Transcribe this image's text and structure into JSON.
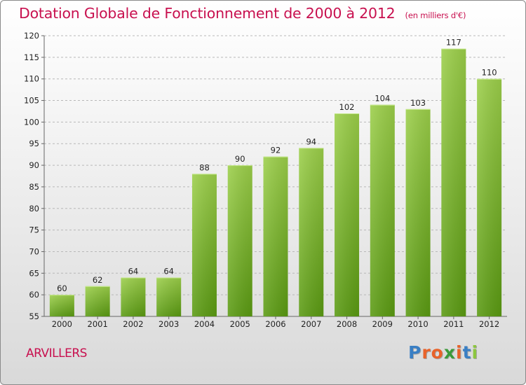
{
  "header": {
    "title": "Dotation Globale de Fonctionnement de 2000 à 2012",
    "subtitle": "(en milliers d'€)"
  },
  "footer": {
    "commune": "ARVILLERS",
    "logo_text": "Proxiti",
    "logo_colors": [
      "#3a7fc4",
      "#e8622a",
      "#e8622a",
      "#3a9a3a",
      "#e8622a",
      "#3a7fc4",
      "#8cc63f"
    ]
  },
  "colors": {
    "accent": "#c8104f",
    "bar_top": "#9ccf4a",
    "bar_bottom": "#5a9a12",
    "grid": "#b8b8b8"
  },
  "chart_data": {
    "type": "bar",
    "title": "Dotation Globale de Fonctionnement de 2000 à 2012",
    "subtitle": "(en milliers d'€)",
    "categories": [
      "2000",
      "2001",
      "2002",
      "2003",
      "2004",
      "2005",
      "2006",
      "2007",
      "2008",
      "2009",
      "2010",
      "2011",
      "2012"
    ],
    "values": [
      60,
      62,
      64,
      64,
      88,
      90,
      92,
      94,
      102,
      104,
      103,
      117,
      110
    ],
    "ylim": [
      55,
      120
    ],
    "yticks": [
      55,
      60,
      65,
      70,
      75,
      80,
      85,
      90,
      95,
      100,
      105,
      110,
      115,
      120
    ],
    "xlabel": "",
    "ylabel": "",
    "grid": true,
    "legend": "none"
  }
}
